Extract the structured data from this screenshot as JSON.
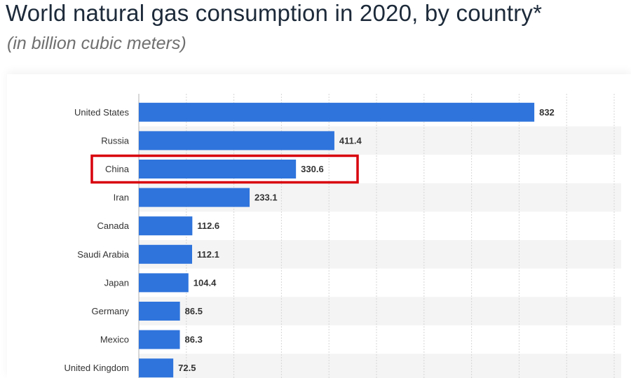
{
  "header": {
    "title": "World natural gas consumption in 2020, by country*",
    "subtitle": "(in billion cubic meters)"
  },
  "colors": {
    "bar": "#2f74dd",
    "highlight": "#d9000d",
    "band": "#f4f4f4",
    "grid": "#d6d6d6"
  },
  "chart_data": {
    "type": "bar",
    "orientation": "horizontal",
    "title": "World natural gas consumption in 2020, by country*",
    "subtitle": "(in billion cubic meters)",
    "categories": [
      "United States",
      "Russia",
      "China",
      "Iran",
      "Canada",
      "Saudi Arabia",
      "Japan",
      "Germany",
      "Mexico",
      "United Kingdom"
    ],
    "values": [
      832,
      411.4,
      330.6,
      233.1,
      112.6,
      112.1,
      104.4,
      86.5,
      86.3,
      72.5
    ],
    "value_labels": [
      "832",
      "411.4",
      "330.6",
      "233.1",
      "112.6",
      "112.1",
      "104.4",
      "86.5",
      "86.3",
      "72.5"
    ],
    "xlim": [
      0,
      1000
    ],
    "grid": true,
    "highlighted_category": "China"
  }
}
